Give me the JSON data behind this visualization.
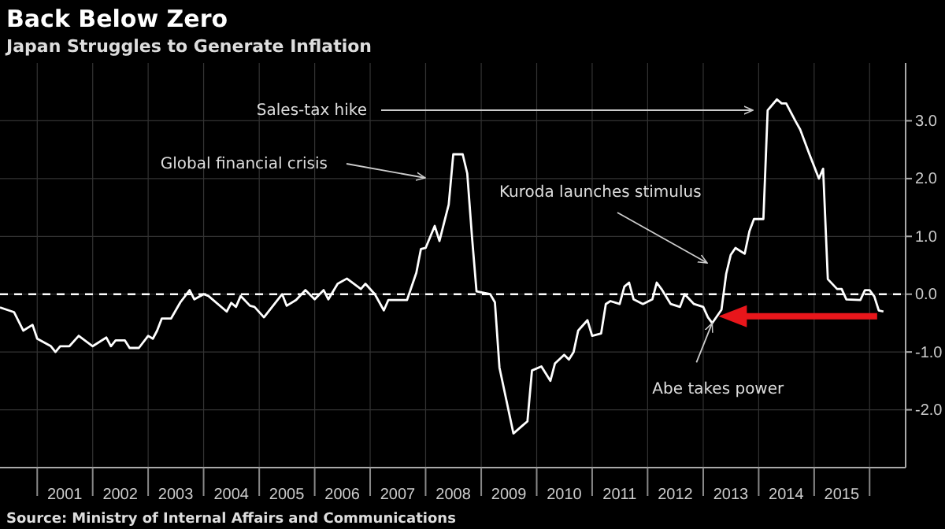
{
  "chart_data": {
    "type": "line",
    "title": "Back Below Zero",
    "subtitle": "Japan Struggles to Generate Inflation",
    "annotations": [
      "Global financial crisis",
      "Sales-tax hike",
      "Kuroda launches stimulus",
      {
        "text": "Abe takes power",
        "x": "2013-03",
        "y": -0.5
      },
      "Source: Ministry of Internal Affairs and Communications"
    ],
    "x": [
      "2000-05",
      "2000-08",
      "2000-10",
      "2000-12",
      "2001-01",
      "2001-04",
      "2001-05",
      "2001-06",
      "2001-08",
      "2001-10",
      "2002-01",
      "2002-04",
      "2002-05",
      "2002-06",
      "2002-08",
      "2002-09",
      "2002-11",
      "2003-01",
      "2003-02",
      "2003-03",
      "2003-04",
      "2003-06",
      "2003-08",
      "2003-10",
      "2003-11",
      "2004-01",
      "2004-02",
      "2004-06",
      "2004-07",
      "2004-08",
      "2004-09",
      "2004-11",
      "2004-12",
      "2005-02",
      "2005-06",
      "2005-07",
      "2005-09",
      "2005-11",
      "2006-01",
      "2006-03",
      "2006-04",
      "2006-06",
      "2006-08",
      "2006-11",
      "2006-12",
      "2007-02",
      "2007-04",
      "2007-05",
      "2007-09",
      "2007-11",
      "2007-12",
      "2008-01",
      "2008-03",
      "2008-04",
      "2008-06",
      "2008-07",
      "2008-09",
      "2008-10",
      "2008-11",
      "2008-12",
      "2009-03",
      "2009-04",
      "2009-05",
      "2009-08",
      "2009-10",
      "2009-11",
      "2009-12",
      "2010-02",
      "2010-04",
      "2010-05",
      "2010-07",
      "2010-08",
      "2010-09",
      "2010-10",
      "2010-12",
      "2011-01",
      "2011-03",
      "2011-04",
      "2011-05",
      "2011-07",
      "2011-08",
      "2011-09",
      "2011-10",
      "2011-12",
      "2012-02",
      "2012-03",
      "2012-04",
      "2012-06",
      "2012-08",
      "2012-09",
      "2012-11",
      "2013-01",
      "2013-02",
      "2013-03",
      "2013-05",
      "2013-06",
      "2013-07",
      "2013-08",
      "2013-10",
      "2013-11",
      "2013-12",
      "2014-02",
      "2014-03",
      "2014-05",
      "2014-06",
      "2014-07",
      "2014-09",
      "2014-10",
      "2014-12",
      "2015-02",
      "2015-03",
      "2015-04",
      "2015-06",
      "2015-07",
      "2015-08",
      "2015-11",
      "2015-12",
      "2016-01",
      "2016-02",
      "2016-03",
      "2016-04"
    ],
    "series": [
      {
        "color": "#ffffff",
        "values": [
          -0.23,
          -0.31,
          -0.63,
          -0.53,
          -0.77,
          -0.9,
          -1.0,
          -0.9,
          -0.9,
          -0.72,
          -0.9,
          -0.75,
          -0.9,
          -0.8,
          -0.8,
          -0.93,
          -0.93,
          -0.72,
          -0.77,
          -0.63,
          -0.42,
          -0.42,
          -0.14,
          0.07,
          -0.09,
          0.0,
          -0.03,
          -0.3,
          -0.15,
          -0.22,
          -0.03,
          -0.2,
          -0.22,
          -0.4,
          0.0,
          -0.2,
          -0.1,
          0.07,
          -0.09,
          0.07,
          -0.09,
          0.18,
          0.27,
          0.09,
          0.18,
          0.0,
          -0.28,
          -0.1,
          -0.1,
          0.37,
          0.78,
          0.8,
          1.18,
          0.92,
          1.55,
          2.42,
          2.42,
          2.09,
          1.0,
          0.05,
          0.0,
          -0.14,
          -1.27,
          -2.41,
          -2.27,
          -2.2,
          -1.32,
          -1.25,
          -1.5,
          -1.2,
          -1.05,
          -1.13,
          -1.0,
          -0.63,
          -0.45,
          -0.72,
          -0.68,
          -0.17,
          -0.12,
          -0.17,
          0.13,
          0.2,
          -0.09,
          -0.17,
          -0.09,
          0.2,
          0.09,
          -0.17,
          -0.22,
          0.0,
          -0.17,
          -0.22,
          -0.4,
          -0.5,
          -0.27,
          0.35,
          0.68,
          0.8,
          0.7,
          1.09,
          1.3,
          1.3,
          3.18,
          3.37,
          3.3,
          3.3,
          2.99,
          2.85,
          2.42,
          2.0,
          2.17,
          0.26,
          0.09,
          0.09,
          -0.09,
          -0.1,
          0.07,
          0.07,
          -0.04,
          -0.28,
          -0.3
        ]
      }
    ],
    "xlim": [
      "2000-05-01",
      "2016-08-25"
    ],
    "xticks": [
      {
        "value": "2001-01-01",
        "label": null
      },
      {
        "value": "2001-07-01",
        "label": "2001"
      },
      {
        "value": "2002-01-01",
        "label": null
      },
      {
        "value": "2002-07-01",
        "label": "2002"
      },
      {
        "value": "2003-01-01",
        "label": null
      },
      {
        "value": "2003-07-01",
        "label": "2003"
      },
      {
        "value": "2004-01-01",
        "label": null
      },
      {
        "value": "2004-07-01",
        "label": "2004"
      },
      {
        "value": "2005-01-01",
        "label": null
      },
      {
        "value": "2005-07-01",
        "label": "2005"
      },
      {
        "value": "2006-01-01",
        "label": null
      },
      {
        "value": "2006-07-01",
        "label": "2006"
      },
      {
        "value": "2007-01-01",
        "label": null
      },
      {
        "value": "2007-07-01",
        "label": "2007"
      },
      {
        "value": "2008-01-01",
        "label": null
      },
      {
        "value": "2008-07-01",
        "label": "2008"
      },
      {
        "value": "2009-01-01",
        "label": null
      },
      {
        "value": "2009-07-01",
        "label": "2009"
      },
      {
        "value": "2010-01-01",
        "label": null
      },
      {
        "value": "2010-07-01",
        "label": "2010"
      },
      {
        "value": "2011-01-01",
        "label": null
      },
      {
        "value": "2011-07-01",
        "label": "2011"
      },
      {
        "value": "2012-01-01",
        "label": null
      },
      {
        "value": "2012-07-01",
        "label": "2012"
      },
      {
        "value": "2013-01-01",
        "label": null
      },
      {
        "value": "2013-07-01",
        "label": "2013"
      },
      {
        "value": "2014-01-01",
        "label": null
      },
      {
        "value": "2014-07-01",
        "label": "2014"
      },
      {
        "value": "2015-01-01",
        "label": null
      },
      {
        "value": "2015-07-01",
        "label": "2015"
      },
      {
        "value": "2016-01-01",
        "label": null
      }
    ],
    "ylim": [
      -3,
      4
    ],
    "yticks": [
      {
        "value": -2,
        "label": "-2.0"
      },
      {
        "value": -1,
        "label": "-1.0"
      },
      {
        "value": 0,
        "label": "0.0"
      },
      {
        "value": 1,
        "label": "1.0"
      },
      {
        "value": 2,
        "label": "2.0"
      },
      {
        "value": 3,
        "label": "3.0"
      }
    ],
    "ref_lines": [
      {
        "axis": "y",
        "value": 0,
        "color": "#ffffff",
        "line_style": "dashed"
      }
    ],
    "grid": true,
    "line_style": "solid",
    "marker": "none"
  }
}
